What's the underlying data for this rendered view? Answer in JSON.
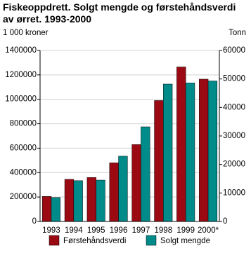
{
  "chart_data": {
    "type": "bar",
    "title": "Fiskeoppdrett. Solgt mengde og førstehåndsverdi av ørret. 1993-2000",
    "y_label": "1 000 kroner",
    "y2_label": "Tonn",
    "categories": [
      "1993",
      "1994",
      "1995",
      "1996",
      "1997",
      "1998",
      "1999",
      "2000*"
    ],
    "series": [
      {
        "name": "Førstehåndsverdi",
        "color": "#9b0a12",
        "values": [
          205000,
          345000,
          360000,
          480000,
          630000,
          990000,
          1265000,
          1165000
        ]
      },
      {
        "name": "Solgt mengde",
        "color": "#008b8b",
        "axis": "y2",
        "values": [
          8400,
          14300,
          14500,
          22900,
          33200,
          48200,
          48600,
          49300
        ]
      }
    ],
    "ylim": [
      0,
      1400000
    ],
    "yticks": [
      0,
      200000,
      400000,
      600000,
      800000,
      1000000,
      1200000,
      1400000
    ],
    "y2lim": [
      0,
      60000
    ],
    "y2ticks": [
      0,
      10000,
      20000,
      30000,
      40000,
      50000,
      60000
    ],
    "grid": true
  }
}
